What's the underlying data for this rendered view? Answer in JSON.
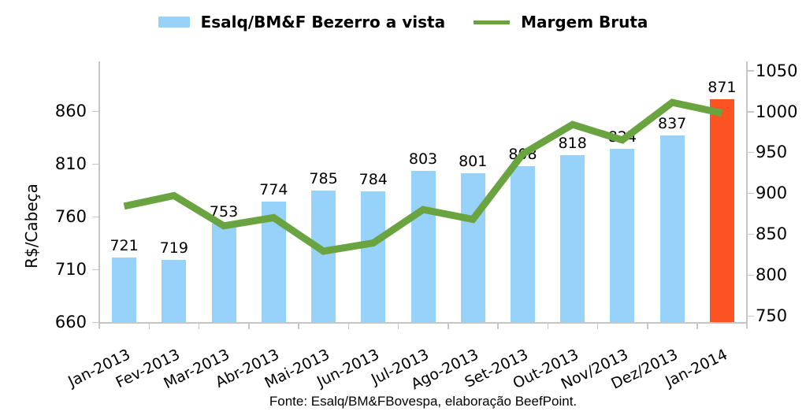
{
  "legend": {
    "bar_label": "Esalq/BM&F Bezerro a vista",
    "line_label": "Margem Bruta"
  },
  "footer": "Fonte: Esalq/BM&FBovespa, elaboração BeefPoint.",
  "colors": {
    "bar": "#97d2fb",
    "bar_highlight": "#fb5422",
    "line": "#6aa441",
    "axis": "#c6c6c6",
    "text": "#000000"
  },
  "chart_data": {
    "type": "bar",
    "categories": [
      "Jan-2013",
      "Fev-2013",
      "Mar-2013",
      "Abr-2013",
      "Mai-2013",
      "Jun-2013",
      "Jul-2013",
      "Ago-2013",
      "Set-2013",
      "Out-2013",
      "Nov/2013",
      "Dez/2013",
      "Jan-2014"
    ],
    "series": [
      {
        "name": "Esalq/BM&F Bezerro a vista",
        "type": "bar",
        "axis": "left",
        "values": [
          721,
          719,
          753,
          774,
          785,
          784,
          803,
          801,
          808,
          818,
          824,
          837,
          871
        ]
      },
      {
        "name": "Margem Bruta",
        "type": "line",
        "axis": "right",
        "values": [
          884,
          897,
          860,
          870,
          829,
          839,
          880,
          868,
          948,
          984,
          965,
          1011,
          998
        ]
      }
    ],
    "bar_highlight_index": 12,
    "data_labels": true,
    "left_axis": {
      "title": "R$/Cabeça",
      "ticks": [
        660,
        710,
        760,
        810,
        860
      ],
      "min": 660,
      "max": 860
    },
    "right_axis": {
      "ticks": [
        750,
        800,
        850,
        900,
        950,
        1000,
        1050
      ],
      "min": 750,
      "max": 1050
    },
    "grid": false,
    "legend_position": "top"
  }
}
